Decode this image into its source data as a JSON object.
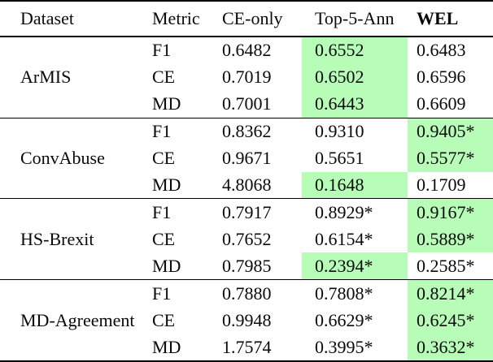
{
  "colors": {
    "highlight_green": "#b7fdb7",
    "text": "#0a0a0a",
    "background": "#ffffff",
    "rules": "#000000"
  },
  "table": {
    "headers": {
      "dataset": "Dataset",
      "metric": "Metric",
      "ce_only": "CE-only",
      "top5": "Top-5-Ann",
      "wel": "WEL"
    },
    "sections": [
      {
        "dataset": "ArMIS",
        "rows": [
          {
            "metric": "F1",
            "ce_only": "0.6482",
            "top5": "0.6552",
            "wel": "0.6483",
            "highlight": "top5"
          },
          {
            "metric": "CE",
            "ce_only": "0.7019",
            "top5": "0.6502",
            "wel": "0.6596",
            "highlight": "top5"
          },
          {
            "metric": "MD",
            "ce_only": "0.7001",
            "top5": "0.6443",
            "wel": "0.6609",
            "highlight": "top5"
          }
        ]
      },
      {
        "dataset": "ConvAbuse",
        "rows": [
          {
            "metric": "F1",
            "ce_only": "0.8362",
            "top5": "0.9310",
            "wel": "0.9405*",
            "highlight": "wel"
          },
          {
            "metric": "CE",
            "ce_only": "0.9671",
            "top5": "0.5651",
            "wel": "0.5577*",
            "highlight": "wel"
          },
          {
            "metric": "MD",
            "ce_only": "4.8068",
            "top5": "0.1648",
            "wel": "0.1709",
            "highlight": "top5"
          }
        ]
      },
      {
        "dataset": "HS-Brexit",
        "rows": [
          {
            "metric": "F1",
            "ce_only": "0.7917",
            "top5": "0.8929*",
            "wel": "0.9167*",
            "highlight": "wel"
          },
          {
            "metric": "CE",
            "ce_only": "0.7652",
            "top5": "0.6154*",
            "wel": "0.5889*",
            "highlight": "wel"
          },
          {
            "metric": "MD",
            "ce_only": "0.7985",
            "top5": "0.2394*",
            "wel": "0.2585*",
            "highlight": "top5"
          }
        ]
      },
      {
        "dataset": "MD-Agreement",
        "rows": [
          {
            "metric": "F1",
            "ce_only": "0.7880",
            "top5": "0.7808*",
            "wel": "0.8214*",
            "highlight": "wel"
          },
          {
            "metric": "CE",
            "ce_only": "0.9948",
            "top5": "0.6629*",
            "wel": "0.6245*",
            "highlight": "wel"
          },
          {
            "metric": "MD",
            "ce_only": "1.7574",
            "top5": "0.3995*",
            "wel": "0.3632*",
            "highlight": "wel"
          }
        ]
      }
    ]
  }
}
